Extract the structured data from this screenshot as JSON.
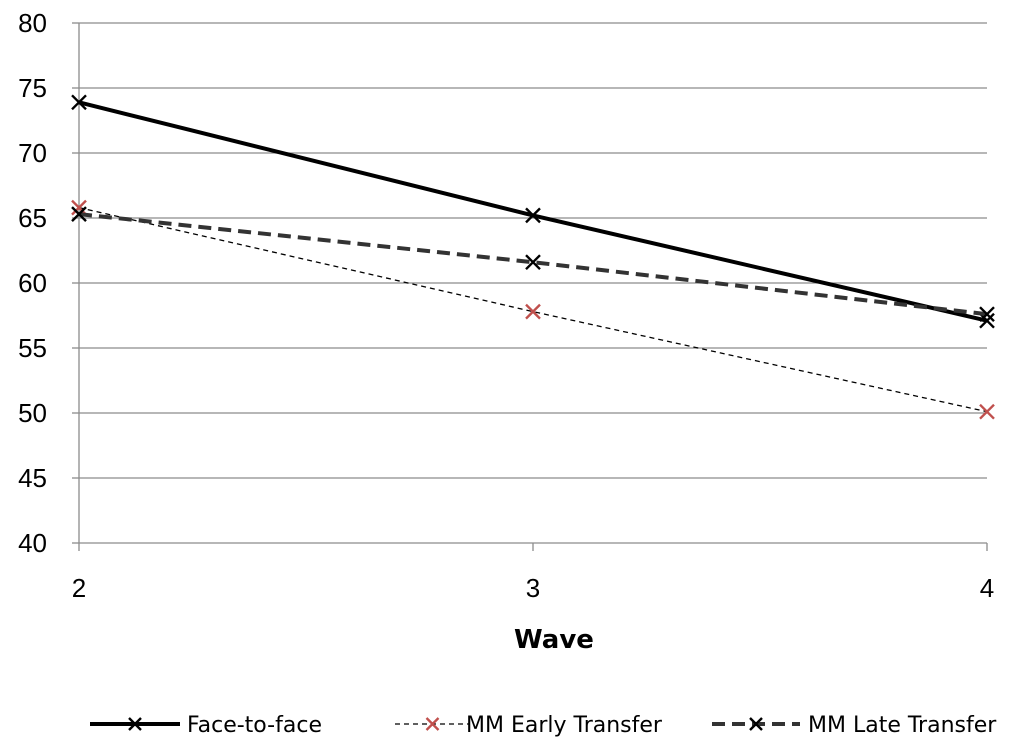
{
  "chart_data": {
    "type": "line",
    "title": "",
    "xlabel": "Wave",
    "ylabel": "",
    "x": [
      2,
      3,
      4
    ],
    "x_tick_labels": [
      "2",
      "3",
      "4"
    ],
    "ylim": [
      40,
      80
    ],
    "y_ticks": [
      40,
      45,
      50,
      55,
      60,
      65,
      70,
      75,
      80
    ],
    "y_tick_labels": [
      "40",
      "45",
      "50",
      "55",
      "60",
      "65",
      "70",
      "75",
      "80"
    ],
    "grid": "horizontal",
    "legend_position": "bottom",
    "series": [
      {
        "name": "Face-to-face",
        "values": [
          73.9,
          65.2,
          57.1
        ],
        "line_color": "#000000",
        "marker_color": "#000000",
        "line_style": "solid",
        "marker": "x"
      },
      {
        "name": "MM Early Transfer",
        "values": [
          65.8,
          57.8,
          50.1
        ],
        "line_color": "#000000",
        "marker_color": "#c0504d",
        "line_style": "dotted",
        "marker": "x"
      },
      {
        "name": "MM Late Transfer",
        "values": [
          65.3,
          61.6,
          57.6
        ],
        "line_color": "#333333",
        "marker_color": "#000000",
        "line_style": "dashed",
        "marker": "x"
      }
    ]
  }
}
